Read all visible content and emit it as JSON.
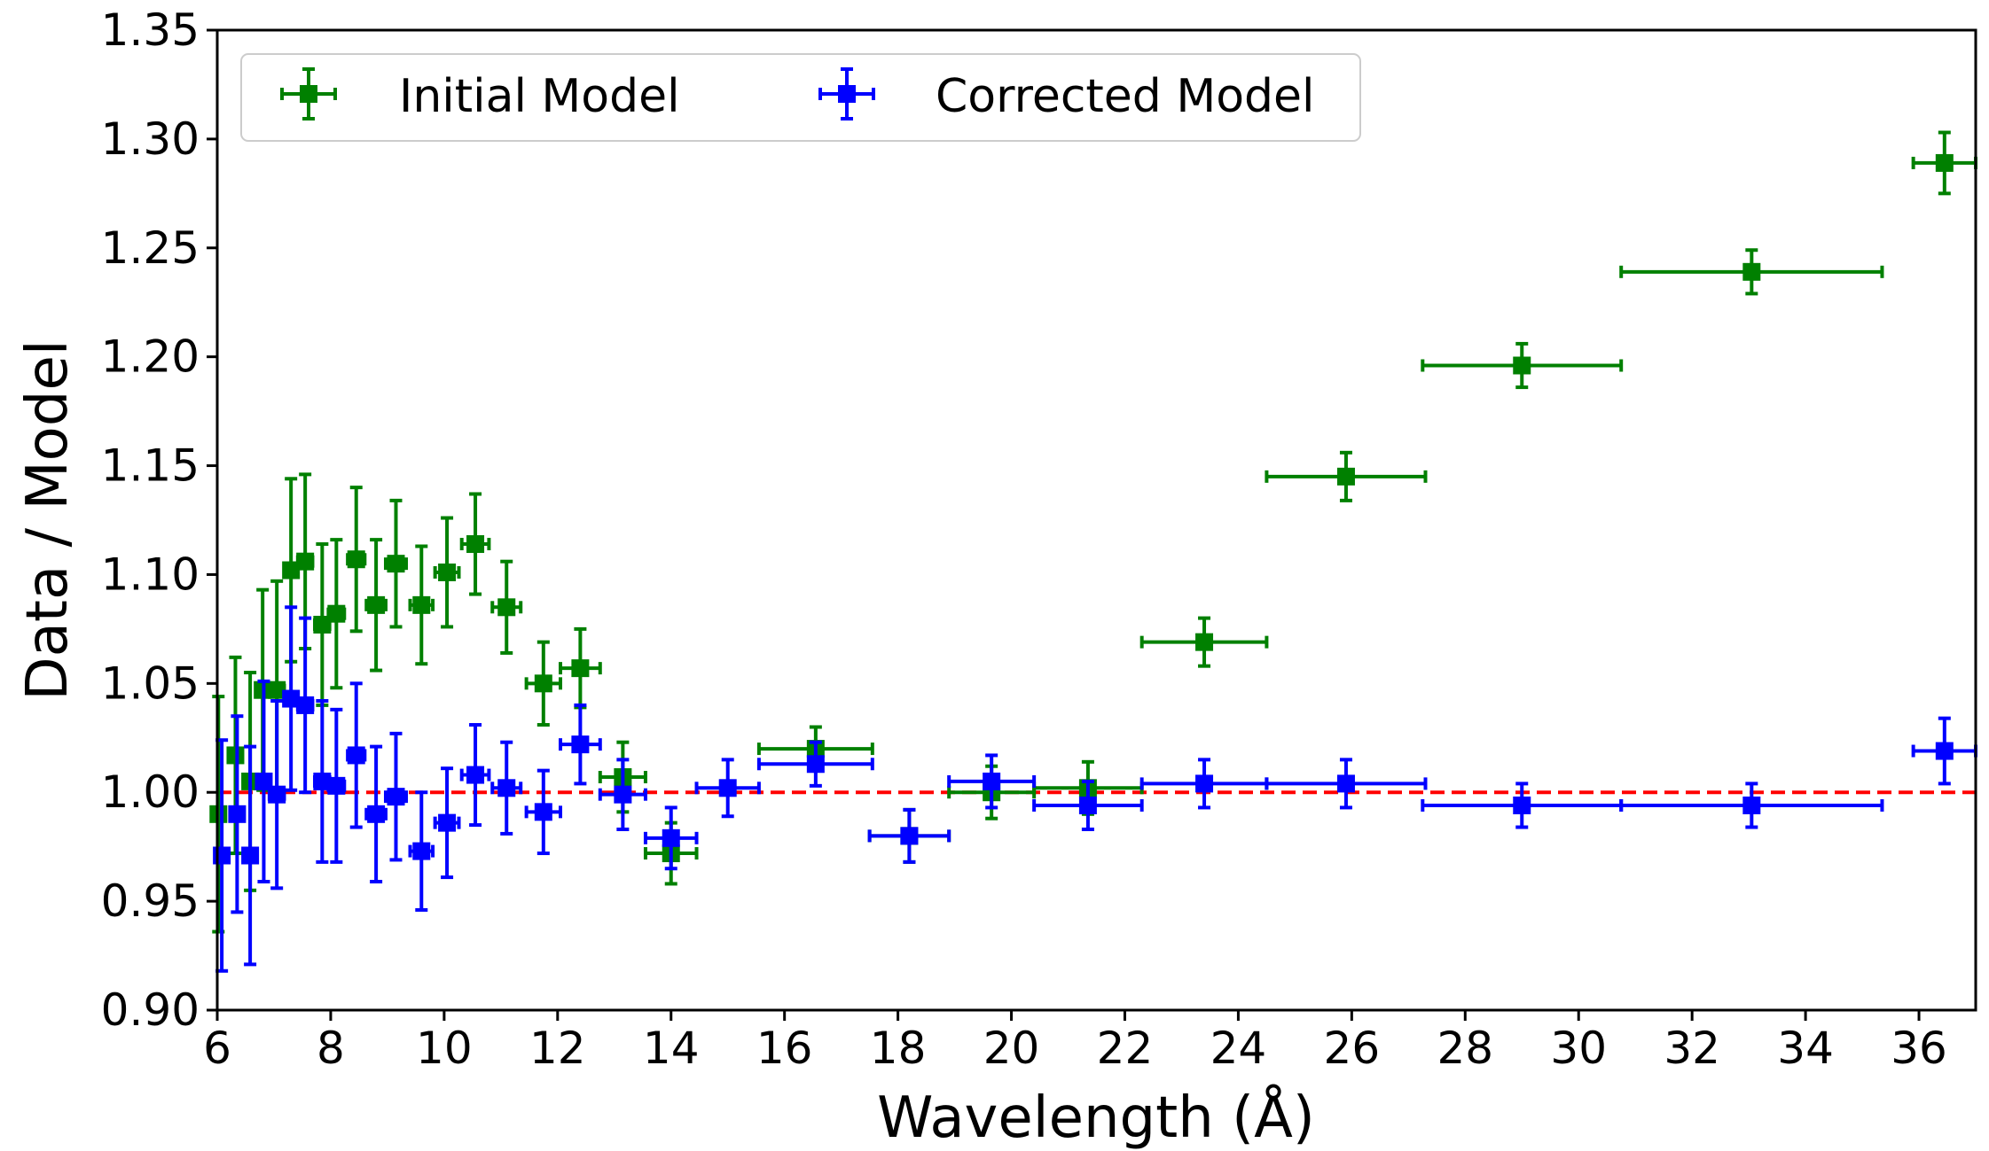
{
  "chart_data": {
    "type": "scatter",
    "title": "",
    "xlabel": "Wavelength (Å)",
    "ylabel": "Data / Model",
    "xlim": [
      6,
      37
    ],
    "ylim": [
      0.9,
      1.35
    ],
    "x_ticks": [
      6,
      8,
      10,
      12,
      14,
      16,
      18,
      20,
      22,
      24,
      26,
      28,
      30,
      32,
      34,
      36
    ],
    "x_tick_labels": [
      "6",
      "8",
      "10",
      "12",
      "14",
      "16",
      "18",
      "20",
      "22",
      "24",
      "26",
      "28",
      "30",
      "32",
      "34",
      "36"
    ],
    "y_ticks": [
      0.9,
      0.95,
      1.0,
      1.05,
      1.1,
      1.15,
      1.2,
      1.25,
      1.3,
      1.35
    ],
    "y_tick_labels": [
      "0.90",
      "0.95",
      "1.00",
      "1.05",
      "1.10",
      "1.15",
      "1.20",
      "1.25",
      "1.30",
      "1.35"
    ],
    "grid": false,
    "legend_position": "top-left",
    "reference_line": {
      "y": 1.0,
      "color": "#ff0000",
      "style": "dashed"
    },
    "series": [
      {
        "name": "Initial Model",
        "color": "#008000",
        "marker": "square",
        "points": [
          {
            "x": 6.02,
            "y": 0.99,
            "xerr": 0.06,
            "yerr": 0.054
          },
          {
            "x": 6.32,
            "y": 1.017,
            "xerr": 0.12,
            "yerr": 0.045
          },
          {
            "x": 6.58,
            "y": 1.005,
            "xerr": 0.12,
            "yerr": 0.05
          },
          {
            "x": 6.8,
            "y": 1.047,
            "xerr": 0.1,
            "yerr": 0.046
          },
          {
            "x": 7.05,
            "y": 1.047,
            "xerr": 0.13,
            "yerr": 0.05
          },
          {
            "x": 7.3,
            "y": 1.102,
            "xerr": 0.12,
            "yerr": 0.042
          },
          {
            "x": 7.55,
            "y": 1.106,
            "xerr": 0.13,
            "yerr": 0.04
          },
          {
            "x": 7.85,
            "y": 1.077,
            "xerr": 0.13,
            "yerr": 0.037
          },
          {
            "x": 8.1,
            "y": 1.082,
            "xerr": 0.14,
            "yerr": 0.034
          },
          {
            "x": 8.45,
            "y": 1.107,
            "xerr": 0.15,
            "yerr": 0.033
          },
          {
            "x": 8.8,
            "y": 1.086,
            "xerr": 0.17,
            "yerr": 0.03
          },
          {
            "x": 9.15,
            "y": 1.105,
            "xerr": 0.18,
            "yerr": 0.029
          },
          {
            "x": 9.6,
            "y": 1.086,
            "xerr": 0.2,
            "yerr": 0.027
          },
          {
            "x": 10.05,
            "y": 1.101,
            "xerr": 0.21,
            "yerr": 0.025
          },
          {
            "x": 10.55,
            "y": 1.114,
            "xerr": 0.24,
            "yerr": 0.023
          },
          {
            "x": 11.1,
            "y": 1.085,
            "xerr": 0.25,
            "yerr": 0.021
          },
          {
            "x": 11.75,
            "y": 1.05,
            "xerr": 0.3,
            "yerr": 0.019
          },
          {
            "x": 12.4,
            "y": 1.057,
            "xerr": 0.35,
            "yerr": 0.018
          },
          {
            "x": 13.15,
            "y": 1.007,
            "xerr": 0.4,
            "yerr": 0.016
          },
          {
            "x": 14.0,
            "y": 0.972,
            "xerr": 0.45,
            "yerr": 0.014
          },
          {
            "x": 16.55,
            "y": 1.02,
            "xerr": 1.0,
            "yerr": 0.01
          },
          {
            "x": 18.2,
            "y": 0.98,
            "xerr": 0.7,
            "yerr": 0.012
          },
          {
            "x": 19.65,
            "y": 1.0,
            "xerr": 0.75,
            "yerr": 0.012
          },
          {
            "x": 21.35,
            "y": 1.002,
            "xerr": 0.95,
            "yerr": 0.012
          },
          {
            "x": 23.4,
            "y": 1.069,
            "xerr": 1.1,
            "yerr": 0.011
          },
          {
            "x": 25.9,
            "y": 1.145,
            "xerr": 1.4,
            "yerr": 0.011
          },
          {
            "x": 29.0,
            "y": 1.196,
            "xerr": 1.75,
            "yerr": 0.01
          },
          {
            "x": 33.05,
            "y": 1.239,
            "xerr": 2.3,
            "yerr": 0.01
          },
          {
            "x": 36.45,
            "y": 1.289,
            "xerr": 0.55,
            "yerr": 0.014
          }
        ]
      },
      {
        "name": "Corrected Model",
        "color": "#0000ff",
        "marker": "square",
        "points": [
          {
            "x": 6.08,
            "y": 0.971,
            "xerr": 0.1,
            "yerr": 0.053
          },
          {
            "x": 6.35,
            "y": 0.99,
            "xerr": 0.12,
            "yerr": 0.045
          },
          {
            "x": 6.58,
            "y": 0.971,
            "xerr": 0.12,
            "yerr": 0.05
          },
          {
            "x": 6.82,
            "y": 1.005,
            "xerr": 0.12,
            "yerr": 0.046
          },
          {
            "x": 7.05,
            "y": 0.999,
            "xerr": 0.13,
            "yerr": 0.043
          },
          {
            "x": 7.3,
            "y": 1.043,
            "xerr": 0.12,
            "yerr": 0.042
          },
          {
            "x": 7.55,
            "y": 1.04,
            "xerr": 0.13,
            "yerr": 0.04
          },
          {
            "x": 7.85,
            "y": 1.005,
            "xerr": 0.13,
            "yerr": 0.037
          },
          {
            "x": 8.1,
            "y": 1.003,
            "xerr": 0.14,
            "yerr": 0.035
          },
          {
            "x": 8.45,
            "y": 1.017,
            "xerr": 0.15,
            "yerr": 0.033
          },
          {
            "x": 8.8,
            "y": 0.99,
            "xerr": 0.17,
            "yerr": 0.031
          },
          {
            "x": 9.15,
            "y": 0.998,
            "xerr": 0.18,
            "yerr": 0.029
          },
          {
            "x": 9.6,
            "y": 0.973,
            "xerr": 0.2,
            "yerr": 0.027
          },
          {
            "x": 10.05,
            "y": 0.986,
            "xerr": 0.21,
            "yerr": 0.025
          },
          {
            "x": 10.55,
            "y": 1.008,
            "xerr": 0.24,
            "yerr": 0.023
          },
          {
            "x": 11.1,
            "y": 1.002,
            "xerr": 0.25,
            "yerr": 0.021
          },
          {
            "x": 11.75,
            "y": 0.991,
            "xerr": 0.3,
            "yerr": 0.019
          },
          {
            "x": 12.4,
            "y": 1.022,
            "xerr": 0.35,
            "yerr": 0.018
          },
          {
            "x": 13.15,
            "y": 0.999,
            "xerr": 0.4,
            "yerr": 0.016
          },
          {
            "x": 14.0,
            "y": 0.979,
            "xerr": 0.45,
            "yerr": 0.014
          },
          {
            "x": 15.0,
            "y": 1.002,
            "xerr": 0.55,
            "yerr": 0.013
          },
          {
            "x": 16.55,
            "y": 1.013,
            "xerr": 1.0,
            "yerr": 0.01
          },
          {
            "x": 18.2,
            "y": 0.98,
            "xerr": 0.7,
            "yerr": 0.012
          },
          {
            "x": 19.65,
            "y": 1.005,
            "xerr": 0.75,
            "yerr": 0.012
          },
          {
            "x": 21.35,
            "y": 0.994,
            "xerr": 0.95,
            "yerr": 0.011
          },
          {
            "x": 23.4,
            "y": 1.004,
            "xerr": 1.1,
            "yerr": 0.011
          },
          {
            "x": 25.9,
            "y": 1.004,
            "xerr": 1.4,
            "yerr": 0.011
          },
          {
            "x": 29.0,
            "y": 0.994,
            "xerr": 1.75,
            "yerr": 0.01
          },
          {
            "x": 33.05,
            "y": 0.994,
            "xerr": 2.3,
            "yerr": 0.01
          },
          {
            "x": 36.45,
            "y": 1.019,
            "xerr": 0.55,
            "yerr": 0.015
          }
        ]
      }
    ]
  }
}
